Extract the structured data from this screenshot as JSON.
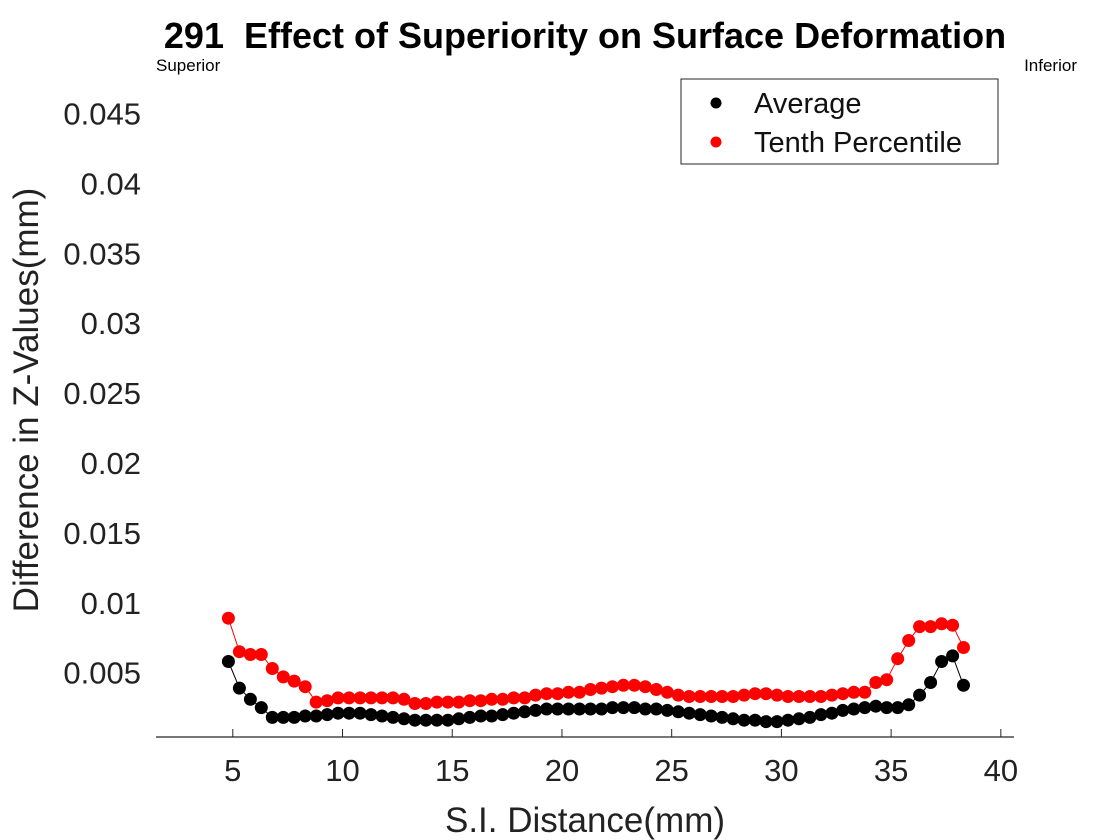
{
  "chart_data": {
    "type": "line",
    "title": "291  Effect of Superiority on Surface Deformation",
    "xlabel": "S.I. Distance(mm)",
    "ylabel": "Difference in Z-Values(mm)",
    "left_annotation": "Superior",
    "right_annotation": "Inferior",
    "xlim": [
      1.5,
      40.6
    ],
    "ylim": [
      0.0004,
      0.0474
    ],
    "xticks": [
      5,
      10,
      15,
      20,
      25,
      30,
      35,
      40
    ],
    "xtick_labels": [
      "5",
      "10",
      "15",
      "20",
      "25",
      "30",
      "35",
      "40"
    ],
    "yticks": [
      0.005,
      0.01,
      0.015,
      0.02,
      0.025,
      0.03,
      0.035,
      0.04,
      0.045
    ],
    "ytick_labels": [
      "0.005",
      "0.01",
      "0.015",
      "0.02",
      "0.025",
      "0.03",
      "0.035",
      "0.04",
      "0.045"
    ],
    "grid": false,
    "legend_position": "top-right",
    "x": [
      4.8,
      5.3,
      5.8,
      6.3,
      6.8,
      7.3,
      7.8,
      8.3,
      8.8,
      9.3,
      9.8,
      10.3,
      10.8,
      11.3,
      11.8,
      12.3,
      12.8,
      13.3,
      13.8,
      14.3,
      14.8,
      15.3,
      15.8,
      16.3,
      16.8,
      17.3,
      17.8,
      18.3,
      18.8,
      19.3,
      19.8,
      20.3,
      20.8,
      21.3,
      21.8,
      22.3,
      22.8,
      23.3,
      23.8,
      24.3,
      24.8,
      25.3,
      25.8,
      26.3,
      26.8,
      27.3,
      27.8,
      28.3,
      28.8,
      29.3,
      29.8,
      30.3,
      30.8,
      31.3,
      31.8,
      32.3,
      32.8,
      33.3,
      33.8,
      34.3,
      34.8,
      35.3,
      35.8,
      36.3,
      36.8,
      37.3,
      37.8,
      38.3
    ],
    "series": [
      {
        "name": "Average",
        "color": "#000000",
        "values": [
          0.0058,
          0.0039,
          0.0031,
          0.0025,
          0.0018,
          0.0018,
          0.0018,
          0.0019,
          0.0019,
          0.002,
          0.0021,
          0.0021,
          0.0021,
          0.002,
          0.0019,
          0.0018,
          0.0017,
          0.0016,
          0.0016,
          0.0016,
          0.0016,
          0.0017,
          0.0018,
          0.0019,
          0.0019,
          0.002,
          0.0021,
          0.0022,
          0.0023,
          0.0024,
          0.0024,
          0.0024,
          0.0024,
          0.0024,
          0.0024,
          0.0025,
          0.0025,
          0.0025,
          0.0024,
          0.0024,
          0.0023,
          0.0022,
          0.0021,
          0.002,
          0.0019,
          0.0018,
          0.0017,
          0.0016,
          0.0016,
          0.0015,
          0.0015,
          0.0016,
          0.0017,
          0.0018,
          0.002,
          0.0021,
          0.0023,
          0.0024,
          0.0025,
          0.0026,
          0.0025,
          0.0025,
          0.0027,
          0.0034,
          0.0043,
          0.0058,
          0.0062,
          0.0041
        ]
      },
      {
        "name": "Tenth Percentile",
        "color": "#ff0000",
        "values": [
          0.0089,
          0.0065,
          0.0063,
          0.0063,
          0.0053,
          0.0047,
          0.0044,
          0.004,
          0.0029,
          0.003,
          0.0032,
          0.0032,
          0.0032,
          0.0032,
          0.0032,
          0.0032,
          0.0031,
          0.0028,
          0.0028,
          0.0029,
          0.0029,
          0.0029,
          0.003,
          0.003,
          0.0031,
          0.0031,
          0.0032,
          0.0032,
          0.0034,
          0.0035,
          0.0035,
          0.0036,
          0.0036,
          0.0038,
          0.0039,
          0.004,
          0.0041,
          0.0041,
          0.004,
          0.0038,
          0.0036,
          0.0034,
          0.0033,
          0.0033,
          0.0033,
          0.0033,
          0.0033,
          0.0034,
          0.0035,
          0.0035,
          0.0034,
          0.0033,
          0.0033,
          0.0033,
          0.0033,
          0.0034,
          0.0035,
          0.0036,
          0.0036,
          0.0043,
          0.0045,
          0.006,
          0.0073,
          0.0083,
          0.0083,
          0.0085,
          0.0084,
          0.0068
        ]
      }
    ]
  }
}
